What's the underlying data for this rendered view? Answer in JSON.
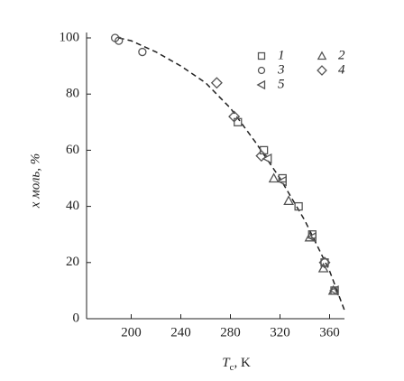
{
  "chart_data": {
    "type": "scatter",
    "x_label": {
      "symbol": "T",
      "subscript": "c",
      "unit": ", K"
    },
    "y_label": "x моль, %",
    "xlim": [
      164,
      372
    ],
    "xticks": [
      200,
      240,
      280,
      320,
      360
    ],
    "ylim": [
      0,
      100
    ],
    "yticks": [
      0,
      20,
      40,
      60,
      80,
      100
    ],
    "color": "#555555",
    "series": [
      {
        "name": "1",
        "marker": "square",
        "x": [
          286,
          307,
          322,
          335,
          346,
          356,
          364
        ],
        "values": [
          70,
          60,
          50,
          40,
          30,
          20,
          10
        ]
      },
      {
        "name": "2",
        "marker": "triangle-up",
        "x": [
          315,
          327,
          344,
          355,
          363
        ],
        "values": [
          50,
          42,
          29,
          18,
          10
        ]
      },
      {
        "name": "3",
        "marker": "circle",
        "x": [
          187,
          190,
          209
        ],
        "values": [
          100,
          99,
          95
        ]
      },
      {
        "name": "4",
        "marker": "diamond",
        "x": [
          269,
          283,
          305,
          356
        ],
        "values": [
          84,
          72,
          58,
          20
        ]
      },
      {
        "name": "5",
        "marker": "triangle-left",
        "x": [
          310,
          322,
          346,
          364
        ],
        "values": [
          57,
          49,
          29,
          10
        ]
      }
    ],
    "curve": {
      "x": [
        190,
        200,
        220,
        240,
        260,
        280,
        300,
        320,
        340,
        360,
        372
      ],
      "values": [
        100,
        99,
        95,
        90,
        84,
        75,
        63,
        50,
        35,
        17,
        3
      ]
    }
  }
}
